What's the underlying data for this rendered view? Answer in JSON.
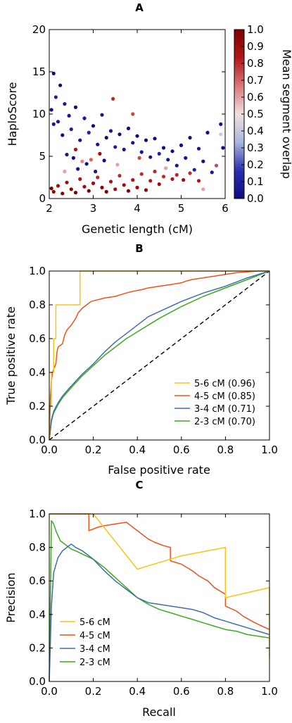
{
  "chart_data": [
    {
      "panel": "A",
      "type": "scatter",
      "xlabel": "Genetic length (cM)",
      "ylabel": "HaploScore",
      "xlim": [
        2,
        6
      ],
      "ylim": [
        0,
        20
      ],
      "xticks": [
        "2",
        "3",
        "4",
        "5",
        "6"
      ],
      "yticks": [
        "0",
        "5",
        "10",
        "15",
        "20"
      ],
      "colorbar": {
        "label": "Mean segment overlap",
        "range": [
          0.0,
          1.0
        ],
        "ticks": [
          "0.0",
          "0.1",
          "0.2",
          "0.3",
          "0.4",
          "0.5",
          "0.6",
          "0.7",
          "0.8",
          "0.9",
          "1.0"
        ],
        "colormap": [
          "#0d0d80",
          "#2b2fb0",
          "#a9b6dd",
          "#f2dfdf",
          "#d9787a",
          "#b01818",
          "#7f0000"
        ]
      },
      "points": [
        [
          2.05,
          10.5,
          0.02
        ],
        [
          2.1,
          8.8,
          0.05
        ],
        [
          2.15,
          12.0,
          0.1
        ],
        [
          2.2,
          9.1,
          0.05
        ],
        [
          2.3,
          7.5,
          0.0
        ],
        [
          2.35,
          11.2,
          0.08
        ],
        [
          2.45,
          9.8,
          0.05
        ],
        [
          2.5,
          8.2,
          0.1
        ],
        [
          2.6,
          10.8,
          0.0
        ],
        [
          2.7,
          6.9,
          0.05
        ],
        [
          2.8,
          9.5,
          0.05
        ],
        [
          2.9,
          7.8,
          0.1
        ],
        [
          3.0,
          8.6,
          0.0
        ],
        [
          3.1,
          6.4,
          0.05
        ],
        [
          3.2,
          9.9,
          0.05
        ],
        [
          3.3,
          7.2,
          0.0
        ],
        [
          3.4,
          8.0,
          0.05
        ],
        [
          3.5,
          6.1,
          0.1
        ],
        [
          3.6,
          7.6,
          0.0
        ],
        [
          3.7,
          5.8,
          0.05
        ],
        [
          3.8,
          8.3,
          0.0
        ],
        [
          3.9,
          6.6,
          0.05
        ],
        [
          4.0,
          7.4,
          0.0
        ],
        [
          4.1,
          5.5,
          0.05
        ],
        [
          4.2,
          6.9,
          0.0
        ],
        [
          4.3,
          4.9,
          0.05
        ],
        [
          4.4,
          7.1,
          0.0
        ],
        [
          4.5,
          5.3,
          0.1
        ],
        [
          4.6,
          6.0,
          0.0
        ],
        [
          4.7,
          4.6,
          0.05
        ],
        [
          4.8,
          5.6,
          0.0
        ],
        [
          4.9,
          3.9,
          0.05
        ],
        [
          5.0,
          6.3,
          0.0
        ],
        [
          5.1,
          4.8,
          0.05
        ],
        [
          5.2,
          7.2,
          0.0
        ],
        [
          5.3,
          3.4,
          0.1
        ],
        [
          5.4,
          5.9,
          0.05
        ],
        [
          5.5,
          4.4,
          0.0
        ],
        [
          5.6,
          7.8,
          0.0
        ],
        [
          5.7,
          3.1,
          0.05
        ],
        [
          5.9,
          8.8,
          0.05
        ],
        [
          5.95,
          6.0,
          0.0
        ],
        [
          2.1,
          14.8,
          0.0
        ],
        [
          2.25,
          13.4,
          0.0
        ],
        [
          2.4,
          5.2,
          0.05
        ],
        [
          2.55,
          4.8,
          0.0
        ],
        [
          2.65,
          3.5,
          0.05
        ],
        [
          2.85,
          4.1,
          0.0
        ],
        [
          3.05,
          3.2,
          0.05
        ],
        [
          3.25,
          4.5,
          0.0
        ],
        [
          2.05,
          1.2,
          1.0
        ],
        [
          2.1,
          0.8,
          0.95
        ],
        [
          2.2,
          1.5,
          0.9
        ],
        [
          2.3,
          0.6,
          1.0
        ],
        [
          2.4,
          1.9,
          0.9
        ],
        [
          2.5,
          1.1,
          0.95
        ],
        [
          2.6,
          0.7,
          1.0
        ],
        [
          2.7,
          2.3,
          0.85
        ],
        [
          2.8,
          1.4,
          0.9
        ],
        [
          2.9,
          0.9,
          1.0
        ],
        [
          3.0,
          1.8,
          0.9
        ],
        [
          3.1,
          2.5,
          0.8
        ],
        [
          3.2,
          1.3,
          0.95
        ],
        [
          3.3,
          0.8,
          1.0
        ],
        [
          3.4,
          2.0,
          0.85
        ],
        [
          3.5,
          1.1,
          0.9
        ],
        [
          3.6,
          2.7,
          0.8
        ],
        [
          3.7,
          1.6,
          0.9
        ],
        [
          3.8,
          0.9,
          1.0
        ],
        [
          3.9,
          2.2,
          0.85
        ],
        [
          4.0,
          1.3,
          0.9
        ],
        [
          4.1,
          2.9,
          0.8
        ],
        [
          4.2,
          1.0,
          0.95
        ],
        [
          4.3,
          2.1,
          0.85
        ],
        [
          4.4,
          3.2,
          0.8
        ],
        [
          4.5,
          1.7,
          0.9
        ],
        [
          4.6,
          2.6,
          0.8
        ],
        [
          4.8,
          2.3,
          0.85
        ],
        [
          4.9,
          2.8,
          0.8
        ],
        [
          5.05,
          2.2,
          0.9
        ],
        [
          5.2,
          3.0,
          0.8
        ],
        [
          5.4,
          2.1,
          0.85
        ],
        [
          5.5,
          1.1,
          0.6
        ],
        [
          5.8,
          3.9,
          0.75
        ],
        [
          5.9,
          7.6,
          0.4
        ],
        [
          3.45,
          11.8,
          0.8
        ],
        [
          3.9,
          10.0,
          0.75
        ],
        [
          2.6,
          5.8,
          0.85
        ],
        [
          3.15,
          5.3,
          0.9
        ],
        [
          2.95,
          4.6,
          0.7
        ],
        [
          2.35,
          3.2,
          0.6
        ],
        [
          2.75,
          4.4,
          0.65
        ],
        [
          3.55,
          4.0,
          0.6
        ],
        [
          4.05,
          4.8,
          0.75
        ],
        [
          4.65,
          3.6,
          0.6
        ]
      ]
    },
    {
      "panel": "B",
      "type": "line",
      "xlabel": "False positive rate",
      "ylabel": "True positive rate",
      "xlim": [
        0.0,
        1.0
      ],
      "ylim": [
        0.0,
        1.0
      ],
      "xticks": [
        "0.0",
        "0.2",
        "0.4",
        "0.6",
        "0.8",
        "1.0"
      ],
      "yticks": [
        "0.0",
        "0.2",
        "0.4",
        "0.6",
        "0.8",
        "1.0"
      ],
      "legend_position": "lower-right",
      "series": [
        {
          "name": "5-6 cM (0.96)",
          "color": "#f5c518",
          "x": [
            0.0,
            0.0,
            0.01,
            0.01,
            0.02,
            0.02,
            0.03,
            0.03,
            0.04,
            0.04,
            0.14,
            0.14,
            1.0
          ],
          "y": [
            0.0,
            0.2,
            0.2,
            0.4,
            0.4,
            0.6,
            0.6,
            0.8,
            0.8,
            0.8,
            0.8,
            1.0,
            1.0
          ]
        },
        {
          "name": "4-5 cM (0.85)",
          "color": "#e8541c",
          "x": [
            0.0,
            0.005,
            0.01,
            0.015,
            0.02,
            0.03,
            0.035,
            0.04,
            0.05,
            0.06,
            0.07,
            0.08,
            0.1,
            0.12,
            0.13,
            0.15,
            0.17,
            0.19,
            0.22,
            0.25,
            0.3,
            0.35,
            0.38,
            0.42,
            0.45,
            0.5,
            0.55,
            0.6,
            0.62,
            0.65,
            0.7,
            0.75,
            0.8,
            0.85,
            0.95,
            1.0
          ],
          "y": [
            0.0,
            0.25,
            0.35,
            0.4,
            0.42,
            0.45,
            0.52,
            0.55,
            0.56,
            0.57,
            0.62,
            0.65,
            0.68,
            0.72,
            0.75,
            0.78,
            0.8,
            0.82,
            0.83,
            0.84,
            0.85,
            0.87,
            0.88,
            0.89,
            0.9,
            0.91,
            0.92,
            0.93,
            0.94,
            0.95,
            0.96,
            0.97,
            0.98,
            0.99,
            1.0,
            1.0
          ]
        },
        {
          "name": "3-4 cM (0.71)",
          "color": "#3f6fa8",
          "x": [
            0.0,
            0.01,
            0.02,
            0.04,
            0.06,
            0.08,
            0.1,
            0.15,
            0.2,
            0.25,
            0.3,
            0.35,
            0.4,
            0.45,
            0.5,
            0.6,
            0.7,
            0.8,
            0.9,
            1.0
          ],
          "y": [
            0.0,
            0.12,
            0.17,
            0.22,
            0.26,
            0.29,
            0.32,
            0.39,
            0.45,
            0.52,
            0.58,
            0.63,
            0.68,
            0.73,
            0.76,
            0.82,
            0.87,
            0.91,
            0.96,
            1.0
          ]
        },
        {
          "name": "2-3 cM (0.70)",
          "color": "#3daa1e",
          "x": [
            0.0,
            0.01,
            0.02,
            0.04,
            0.06,
            0.08,
            0.1,
            0.15,
            0.2,
            0.25,
            0.3,
            0.35,
            0.4,
            0.45,
            0.5,
            0.6,
            0.7,
            0.8,
            0.9,
            1.0
          ],
          "y": [
            0.0,
            0.11,
            0.16,
            0.21,
            0.25,
            0.28,
            0.31,
            0.38,
            0.44,
            0.5,
            0.55,
            0.6,
            0.64,
            0.68,
            0.72,
            0.79,
            0.85,
            0.9,
            0.95,
            1.0
          ]
        },
        {
          "name": "",
          "color": "#000000",
          "dashed": true,
          "x": [
            0.0,
            1.0
          ],
          "y": [
            0.0,
            1.0
          ]
        }
      ]
    },
    {
      "panel": "C",
      "type": "line",
      "xlabel": "Recall",
      "ylabel": "Precision",
      "xlim": [
        0.0,
        1.0
      ],
      "ylim": [
        0.0,
        1.0
      ],
      "xticks": [
        "0.0",
        "0.2",
        "0.4",
        "0.6",
        "0.8",
        "1.0"
      ],
      "yticks": [
        "0.0",
        "0.2",
        "0.4",
        "0.6",
        "0.8",
        "1.0"
      ],
      "legend_position": "lower-left",
      "series": [
        {
          "name": "5-6 cM",
          "color": "#f5c518",
          "x": [
            0.0,
            0.2,
            0.4,
            0.6,
            0.8,
            0.8,
            1.0,
            1.0
          ],
          "y": [
            1.0,
            1.0,
            0.67,
            0.75,
            0.8,
            0.5,
            0.56,
            0.14
          ]
        },
        {
          "name": "4-5 cM",
          "color": "#e8541c",
          "x": [
            0.0,
            0.1,
            0.18,
            0.18,
            0.22,
            0.25,
            0.3,
            0.35,
            0.38,
            0.42,
            0.45,
            0.48,
            0.52,
            0.55,
            0.55,
            0.6,
            0.65,
            0.68,
            0.72,
            0.75,
            0.8,
            0.8,
            0.85,
            0.88,
            0.92,
            0.95,
            1.0
          ],
          "y": [
            1.0,
            1.0,
            1.0,
            0.9,
            0.92,
            0.93,
            0.94,
            0.95,
            0.92,
            0.88,
            0.85,
            0.83,
            0.81,
            0.8,
            0.72,
            0.7,
            0.66,
            0.63,
            0.6,
            0.56,
            0.52,
            0.45,
            0.42,
            0.39,
            0.36,
            0.34,
            0.31
          ]
        },
        {
          "name": "3-4 cM",
          "color": "#3f6fa8",
          "x": [
            0.0,
            0.01,
            0.02,
            0.04,
            0.06,
            0.08,
            0.1,
            0.12,
            0.15,
            0.2,
            0.25,
            0.3,
            0.35,
            0.4,
            0.45,
            0.5,
            0.55,
            0.6,
            0.65,
            0.7,
            0.75,
            0.8,
            0.85,
            0.9,
            0.95,
            1.0
          ],
          "y": [
            0.0,
            0.45,
            0.65,
            0.74,
            0.78,
            0.8,
            0.82,
            0.8,
            0.78,
            0.73,
            0.66,
            0.6,
            0.55,
            0.5,
            0.47,
            0.46,
            0.45,
            0.44,
            0.43,
            0.41,
            0.38,
            0.36,
            0.34,
            0.32,
            0.3,
            0.28
          ]
        },
        {
          "name": "2-3 cM",
          "color": "#3daa1e",
          "x": [
            0.0,
            0.01,
            0.02,
            0.03,
            0.05,
            0.08,
            0.1,
            0.12,
            0.15,
            0.2,
            0.25,
            0.3,
            0.35,
            0.4,
            0.45,
            0.5,
            0.55,
            0.6,
            0.65,
            0.7,
            0.75,
            0.8,
            0.85,
            0.9,
            0.95,
            1.0
          ],
          "y": [
            0.0,
            0.96,
            0.94,
            0.9,
            0.84,
            0.81,
            0.79,
            0.78,
            0.76,
            0.73,
            0.68,
            0.62,
            0.56,
            0.5,
            0.46,
            0.43,
            0.41,
            0.39,
            0.37,
            0.35,
            0.33,
            0.31,
            0.3,
            0.28,
            0.27,
            0.26
          ]
        }
      ]
    }
  ]
}
